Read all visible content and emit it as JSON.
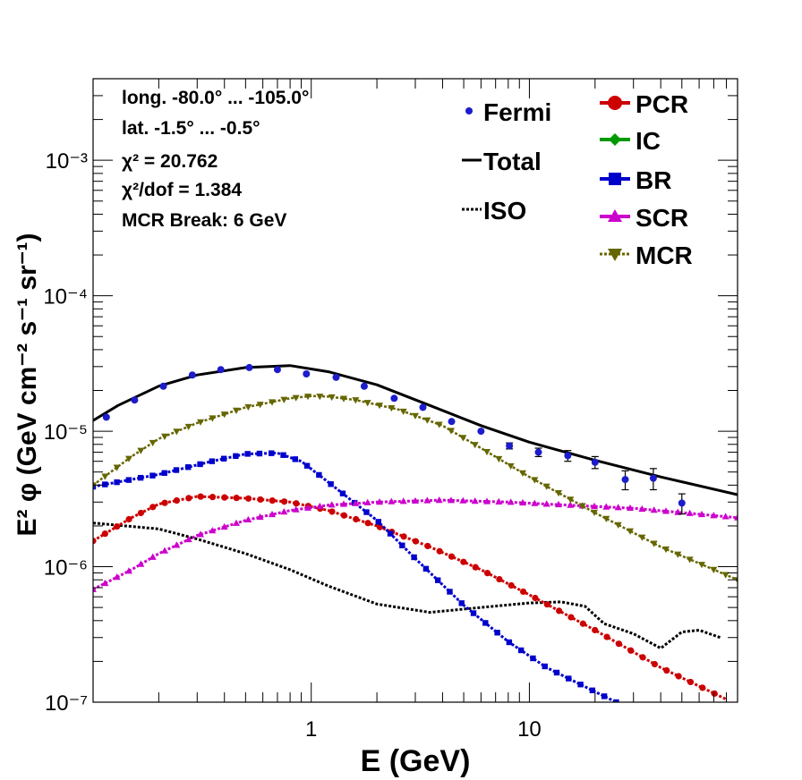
{
  "chart_data": {
    "type": "line",
    "title": "",
    "xlabel": "E (GeV)",
    "ylabel": "E² φ (GeV cm⁻² s⁻¹ sr⁻¹)",
    "xscale": "log",
    "yscale": "log",
    "xlim": [
      0.1,
      90
    ],
    "ylim": [
      1e-07,
      0.004
    ],
    "x_tick_labels": [
      "1",
      "10"
    ],
    "y_tick_labels": [
      "10⁻⁷",
      "10⁻⁶",
      "10⁻⁵",
      "10⁻⁴",
      "10⁻³"
    ],
    "info_text": [
      "long. -80.0° ... -105.0°",
      "lat. -1.5° ... -0.5°",
      "χ² = 20.762",
      "χ²/dof = 1.384",
      "MCR Break:  6 GeV"
    ],
    "legend_position": "top-right",
    "legend_left": [
      {
        "key": "Fermi",
        "label": "Fermi"
      },
      {
        "key": "Total",
        "label": "Total"
      },
      {
        "key": "ISO",
        "label": "ISO"
      }
    ],
    "legend_right": [
      {
        "key": "PCR",
        "label": "PCR"
      },
      {
        "key": "IC",
        "label": "IC"
      },
      {
        "key": "BR",
        "label": "BR"
      },
      {
        "key": "SCR",
        "label": "SCR"
      },
      {
        "key": "MCR",
        "label": "MCR"
      }
    ],
    "colors": {
      "Fermi": "#1c1ccc",
      "Total": "#000000",
      "ISO": "#000000",
      "PCR": "#cc0000",
      "IC": "#009900",
      "BR": "#0000cc",
      "SCR": "#cc00cc",
      "MCR": "#666600"
    },
    "fermi": {
      "x": [
        0.115,
        0.155,
        0.21,
        0.285,
        0.385,
        0.52,
        0.7,
        0.95,
        1.3,
        1.75,
        2.4,
        3.25,
        4.4,
        6.0,
        8.1,
        11.0,
        15.0,
        20.0,
        27.5,
        37.0,
        50.0,
        68.0
      ],
      "y": [
        1.27e-05,
        1.7e-05,
        2.15e-05,
        2.6e-05,
        2.85e-05,
        2.95e-05,
        2.85e-05,
        2.65e-05,
        2.5e-05,
        2.15e-05,
        1.75e-05,
        1.5e-05,
        1.18e-05,
        1e-05,
        7.8e-06,
        7e-06,
        6.6e-06,
        5.9e-06,
        4.4e-06,
        4.5e-06,
        2.95e-06,
        0
      ],
      "yerr": [
        0,
        0,
        0,
        0,
        0,
        0,
        0,
        0,
        0,
        0,
        0,
        0,
        0,
        0,
        4e-07,
        5e-07,
        6e-07,
        6e-07,
        7e-07,
        8e-07,
        5e-07,
        0
      ]
    },
    "series": [
      {
        "name": "Total",
        "style": "solid",
        "x": [
          0.1,
          0.13,
          0.2,
          0.3,
          0.5,
          0.8,
          1.2,
          2.0,
          3.5,
          6.0,
          10,
          20,
          40,
          90
        ],
        "y": [
          1.2e-05,
          1.55e-05,
          2.15e-05,
          2.6e-05,
          2.95e-05,
          3.05e-05,
          2.75e-05,
          2.2e-05,
          1.55e-05,
          1.1e-05,
          8.3e-06,
          6.1e-06,
          4.6e-06,
          3.4e-06
        ]
      },
      {
        "name": "ISO",
        "style": "dotted",
        "x": [
          0.1,
          0.2,
          0.3,
          0.5,
          0.8,
          1.2,
          2.0,
          3.5,
          6.0,
          10,
          14,
          18,
          22,
          30,
          40,
          50,
          60,
          75
        ],
        "y": [
          2.1e-06,
          1.9e-06,
          1.6e-06,
          1.25e-06,
          9.5e-07,
          7.2e-07,
          5.3e-07,
          4.6e-07,
          5e-07,
          5.4e-07,
          5.5e-07,
          5.1e-07,
          3.8e-07,
          3.2e-07,
          2.5e-07,
          3.3e-07,
          3.4e-07,
          3e-07
        ]
      },
      {
        "name": "PCR",
        "style": "markers-circle",
        "x": [
          0.1,
          0.15,
          0.2,
          0.3,
          0.5,
          0.8,
          1.2,
          2.0,
          3.5,
          6.0,
          10,
          20,
          40,
          80
        ],
        "y": [
          1.55e-06,
          2.3e-06,
          2.9e-06,
          3.3e-06,
          3.2e-06,
          3e-06,
          2.6e-06,
          2e-06,
          1.4e-06,
          9.5e-07,
          6.2e-07,
          3.4e-07,
          1.8e-07,
          1.05e-07
        ]
      },
      {
        "name": "BR",
        "style": "markers-square",
        "x": [
          0.1,
          0.2,
          0.35,
          0.5,
          0.7,
          0.9,
          1.2,
          2.0,
          3.0,
          5.0,
          8.0,
          12,
          18,
          25
        ],
        "y": [
          3.9e-06,
          4.8e-06,
          6e-06,
          6.8e-06,
          6.9e-06,
          6e-06,
          4.2e-06,
          2.2e-06,
          1.15e-06,
          5.2e-07,
          2.8e-07,
          1.8e-07,
          1.3e-07,
          1e-07
        ]
      },
      {
        "name": "SCR",
        "style": "markers-triangle-up",
        "x": [
          0.1,
          0.15,
          0.2,
          0.3,
          0.5,
          0.8,
          1.2,
          2.0,
          4.0,
          8.0,
          15,
          30,
          90
        ],
        "y": [
          6.8e-07,
          9.5e-07,
          1.25e-06,
          1.7e-06,
          2.2e-06,
          2.6e-06,
          2.85e-06,
          3e-06,
          3.1e-06,
          3e-06,
          2.85e-06,
          2.7e-06,
          2.3e-06
        ]
      },
      {
        "name": "MCR",
        "style": "markers-triangle-down",
        "x": [
          0.1,
          0.15,
          0.2,
          0.3,
          0.5,
          0.8,
          1.0,
          1.2,
          1.6,
          2.5,
          4.0,
          6.0,
          10,
          20,
          40,
          90
        ],
        "y": [
          4e-06,
          6.5e-06,
          8.8e-06,
          1.15e-05,
          1.5e-05,
          1.75e-05,
          1.82e-05,
          1.8e-05,
          1.7e-05,
          1.45e-05,
          1.1e-05,
          7.5e-06,
          4.6e-06,
          2.5e-06,
          1.4e-06,
          8e-07
        ]
      }
    ]
  }
}
